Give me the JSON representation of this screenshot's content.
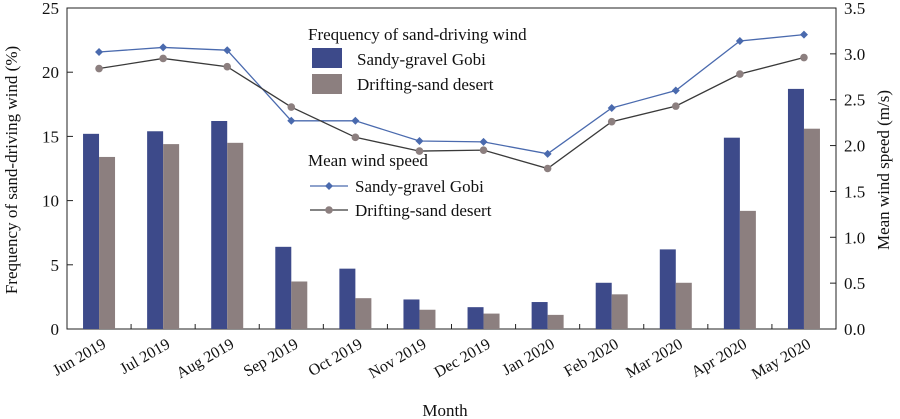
{
  "chart_data": {
    "type": "bar",
    "categories": [
      "Jun 2019",
      "Jul 2019",
      "Aug 2019",
      "Sep 2019",
      "Oct 2019",
      "Nov 2019",
      "Dec 2019",
      "Jan 2020",
      "Feb 2020",
      "Mar 2020",
      "Apr 2020",
      "May 2020"
    ],
    "xlabel": "Month",
    "ylabel_left": "Frequency of sand-driving wind (%)",
    "ylabel_right": "Mean wind speed (m/s)",
    "ylim_left": [
      0,
      25
    ],
    "yticks_left": [
      "0",
      "5",
      "10",
      "15",
      "20",
      "25"
    ],
    "ylim_right": [
      0,
      3.5
    ],
    "yticks_right": [
      "0.0",
      "0.5",
      "1.0",
      "1.5",
      "2.0",
      "2.5",
      "3.0",
      "3.5"
    ],
    "legend_bar_title": "Frequency of sand-driving wind",
    "legend_line_title": "Mean wind speed",
    "bar_series": [
      {
        "name": "Sandy-gravel Gobi",
        "color": "#3d4a8a",
        "values": [
          15.2,
          15.4,
          16.2,
          6.4,
          4.7,
          2.3,
          1.7,
          2.1,
          3.6,
          6.2,
          14.9,
          18.7
        ]
      },
      {
        "name": "Drifting-sand desert",
        "color": "#8c7f7f",
        "values": [
          13.4,
          14.4,
          14.5,
          3.7,
          2.4,
          1.5,
          1.2,
          1.1,
          2.7,
          3.6,
          9.2,
          15.6
        ]
      }
    ],
    "line_series": [
      {
        "name": "Sandy-gravel Gobi",
        "color": "#4a6aae",
        "marker": "diamond",
        "values": [
          3.02,
          3.07,
          3.04,
          2.27,
          2.27,
          2.05,
          2.04,
          1.91,
          2.41,
          2.6,
          3.14,
          3.21
        ]
      },
      {
        "name": "Drifting-sand desert",
        "color": "#3a3a3a",
        "marker_color": "#8c7f7f",
        "marker": "circle",
        "values": [
          2.84,
          2.95,
          2.86,
          2.42,
          2.09,
          1.94,
          1.95,
          1.75,
          2.26,
          2.43,
          2.78,
          2.96
        ]
      }
    ],
    "grid": false
  }
}
